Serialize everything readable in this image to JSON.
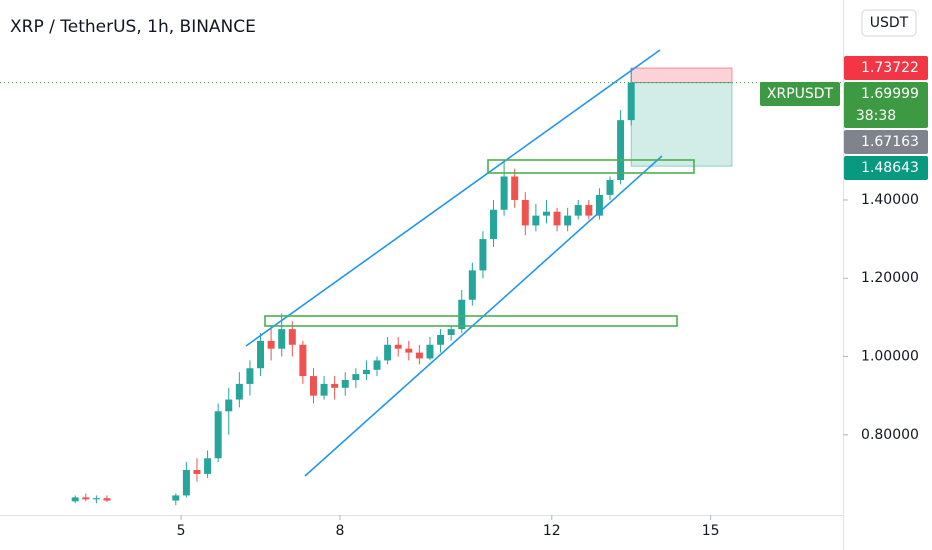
{
  "chart_data": {
    "type": "candlestick",
    "title": "XRP / TetherUS, 1h, BINANCE",
    "currency": "USDT",
    "symbol": "XRPUSDT",
    "countdown": "38:38",
    "up_color": "#26a69a",
    "down_color": "#ef5350",
    "x": [
      3.0,
      3.2,
      3.4,
      3.6,
      4.9,
      5.1,
      5.3,
      5.5,
      5.7,
      5.9,
      6.1,
      6.3,
      6.5,
      6.7,
      6.9,
      7.1,
      7.3,
      7.5,
      7.7,
      7.9,
      8.1,
      8.3,
      8.5,
      8.7,
      8.9,
      9.1,
      9.3,
      9.5,
      9.7,
      9.9,
      10.1,
      10.3,
      10.5,
      10.7,
      10.9,
      11.1,
      11.3,
      11.5,
      11.7,
      11.9,
      12.1,
      12.3,
      12.5,
      12.7,
      12.9,
      13.1,
      13.3,
      13.5
    ],
    "open": [
      0.63,
      0.64,
      0.635,
      0.638,
      0.632,
      0.645,
      0.71,
      0.7,
      0.74,
      0.86,
      0.89,
      0.93,
      0.97,
      1.04,
      1.02,
      1.07,
      1.03,
      0.95,
      0.9,
      0.93,
      0.92,
      0.94,
      0.955,
      0.966,
      0.99,
      1.03,
      1.02,
      1.01,
      0.995,
      1.03,
      1.055,
      1.07,
      1.145,
      1.22,
      1.3,
      1.375,
      1.46,
      1.4,
      1.335,
      1.36,
      1.37,
      1.335,
      1.36,
      1.387,
      1.36,
      1.413,
      1.451,
      1.604
    ],
    "high": [
      0.645,
      0.65,
      0.645,
      0.645,
      0.65,
      0.73,
      0.74,
      0.76,
      0.88,
      0.92,
      0.96,
      0.99,
      1.06,
      1.08,
      1.11,
      1.09,
      1.04,
      0.97,
      0.95,
      0.95,
      0.96,
      0.97,
      0.99,
      1.0,
      1.05,
      1.05,
      1.04,
      1.03,
      1.05,
      1.07,
      1.08,
      1.17,
      1.24,
      1.32,
      1.4,
      1.5,
      1.48,
      1.42,
      1.39,
      1.4,
      1.38,
      1.38,
      1.4,
      1.4,
      1.43,
      1.46,
      1.63,
      1.737
    ],
    "low": [
      0.625,
      0.63,
      0.625,
      0.628,
      0.62,
      0.64,
      0.68,
      0.69,
      0.73,
      0.8,
      0.87,
      0.9,
      0.95,
      0.99,
      1.0,
      1.0,
      0.93,
      0.88,
      0.89,
      0.89,
      0.9,
      0.92,
      0.94,
      0.95,
      0.98,
      1.0,
      0.99,
      0.98,
      0.99,
      1.01,
      1.04,
      1.06,
      1.13,
      1.2,
      1.28,
      1.36,
      1.38,
      1.31,
      1.32,
      1.34,
      1.32,
      1.32,
      1.35,
      1.35,
      1.35,
      1.4,
      1.44,
      1.59
    ],
    "close": [
      0.64,
      0.635,
      0.638,
      0.632,
      0.645,
      0.71,
      0.7,
      0.74,
      0.86,
      0.89,
      0.93,
      0.97,
      1.04,
      1.02,
      1.07,
      1.03,
      0.95,
      0.9,
      0.93,
      0.92,
      0.94,
      0.955,
      0.966,
      0.99,
      1.03,
      1.02,
      1.01,
      0.995,
      1.03,
      1.055,
      1.07,
      1.145,
      1.22,
      1.3,
      1.375,
      1.46,
      1.4,
      1.335,
      1.36,
      1.37,
      1.335,
      1.36,
      1.387,
      1.36,
      1.413,
      1.451,
      1.604,
      1.69999
    ],
    "xlim": [
      1.58,
      17.5
    ],
    "ylim": [
      0.595,
      1.911
    ],
    "xticks": [
      5,
      8,
      12,
      15
    ],
    "yticks": [
      {
        "value": 0.8,
        "label": "0.80000"
      },
      {
        "value": 1.0,
        "label": "1.00000"
      },
      {
        "value": 1.2,
        "label": "1.20000"
      },
      {
        "value": 1.4,
        "label": "1.40000"
      }
    ],
    "price_markers": [
      {
        "value": 1.73722,
        "color": "#f23645"
      },
      {
        "value": 1.69999,
        "color": "#3d9a42"
      },
      {
        "value": 1.67163,
        "color": "#7f838c"
      },
      {
        "value": 1.48643,
        "color": "#089981"
      }
    ]
  }
}
